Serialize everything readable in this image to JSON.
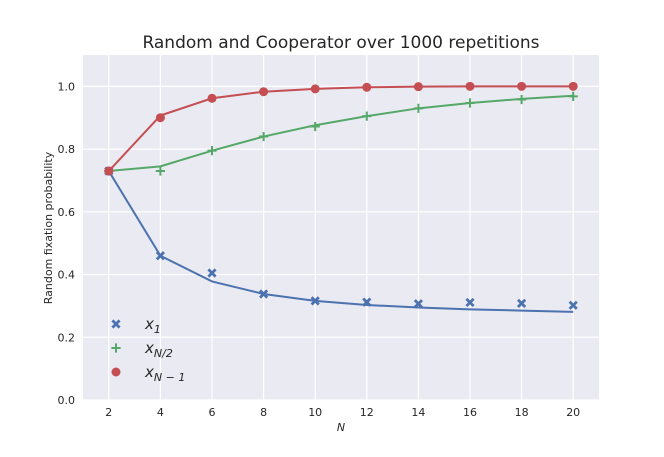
{
  "chart_data": {
    "type": "line",
    "title": "Random and Cooperator over 1000 repetitions",
    "xlabel": "N",
    "ylabel": "Random fixation probability",
    "x": [
      2,
      4,
      6,
      8,
      10,
      12,
      14,
      16,
      18,
      20
    ],
    "x_ticks": [
      "2",
      "4",
      "6",
      "8",
      "10",
      "12",
      "14",
      "16",
      "18",
      "20"
    ],
    "y_ticks": [
      "0.0",
      "0.2",
      "0.4",
      "0.6",
      "0.8",
      "1.0"
    ],
    "xlim": [
      1,
      21
    ],
    "ylim": [
      0.0,
      1.1
    ],
    "grid": true,
    "background": "#eaeaf2",
    "legend_position": "lower-left",
    "series": [
      {
        "name": "x_1",
        "legend_main": "x",
        "legend_sub": "1",
        "color": "#4c72b0",
        "marker": "x",
        "line": [
          0.73,
          0.46,
          0.378,
          0.338,
          0.316,
          0.303,
          0.295,
          0.289,
          0.285,
          0.281
        ],
        "points": [
          0.73,
          0.46,
          0.405,
          0.338,
          0.316,
          0.312,
          0.307,
          0.311,
          0.308,
          0.302
        ]
      },
      {
        "name": "x_N/2",
        "legend_main": "x",
        "legend_sub": "N/2",
        "color": "#55a868",
        "marker": "plus",
        "line": [
          0.73,
          0.745,
          0.795,
          0.84,
          0.876,
          0.905,
          0.93,
          0.947,
          0.96,
          0.97
        ],
        "points": [
          0.73,
          0.73,
          0.795,
          0.84,
          0.872,
          0.905,
          0.93,
          0.947,
          0.958,
          0.968
        ]
      },
      {
        "name": "x_N-1",
        "legend_main": "x",
        "legend_sub": "N − 1",
        "color": "#c44e52",
        "marker": "circle",
        "line": [
          0.73,
          0.907,
          0.962,
          0.983,
          0.992,
          0.997,
          0.999,
          1.0,
          1.0,
          1.0
        ],
        "points": [
          0.73,
          0.9,
          0.962,
          0.983,
          0.992,
          0.997,
          0.999,
          1.0,
          1.0,
          1.0
        ]
      }
    ]
  }
}
